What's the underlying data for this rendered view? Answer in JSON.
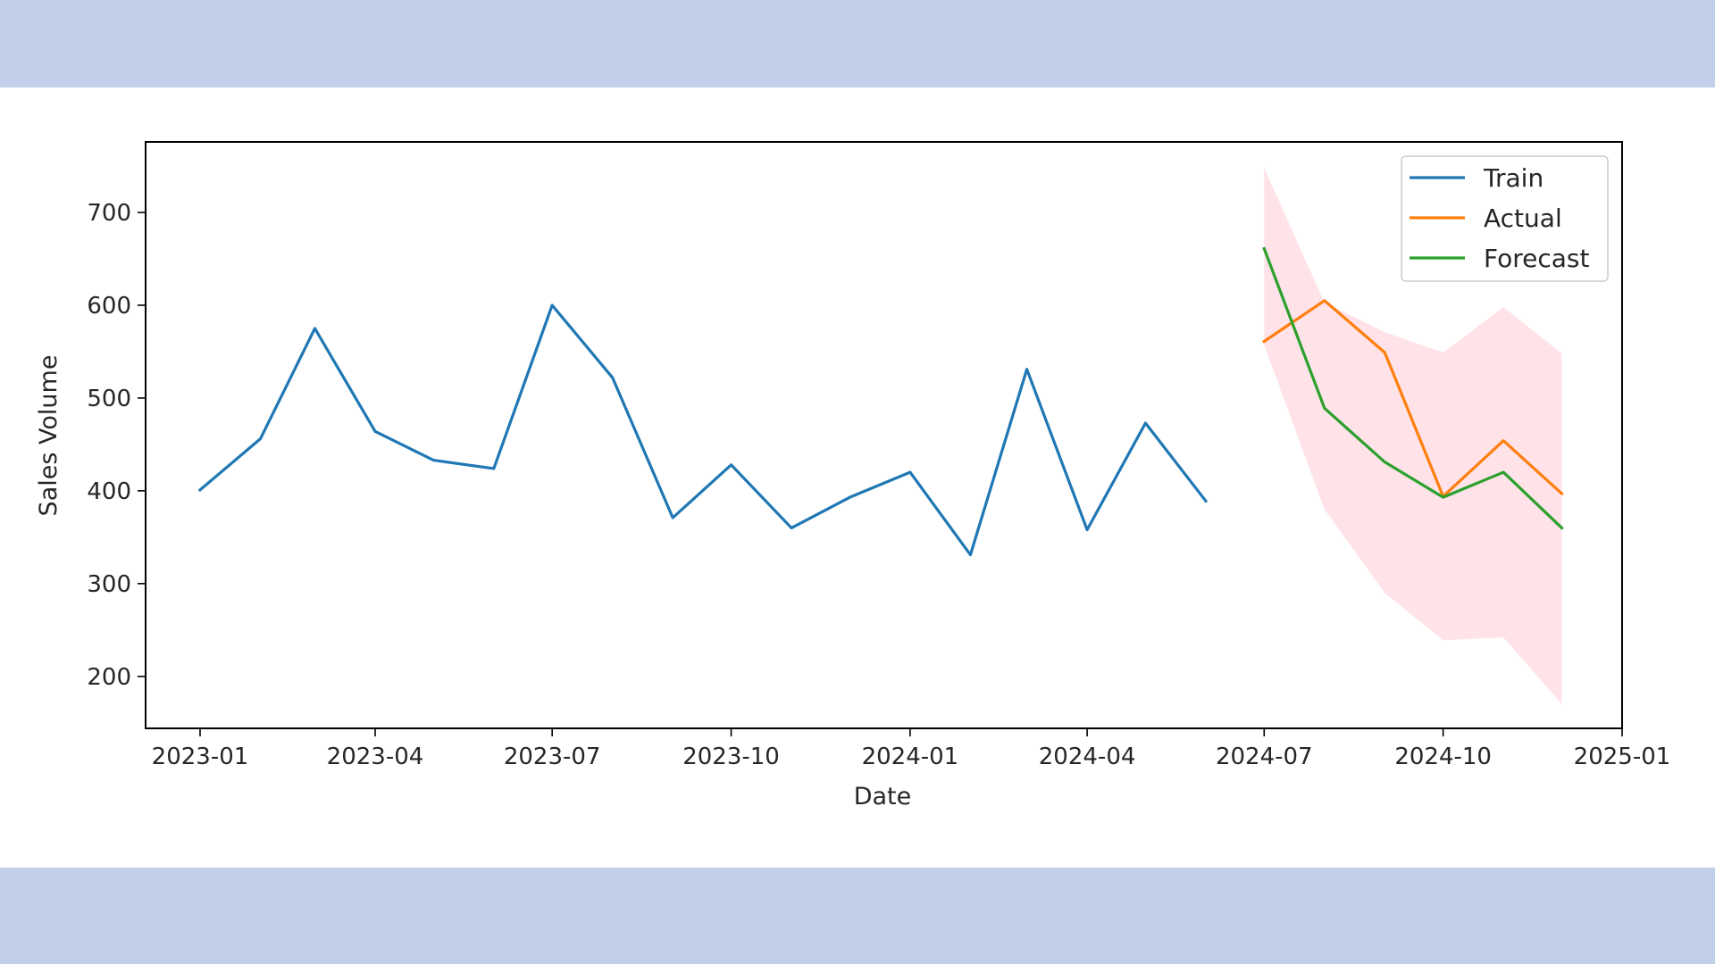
{
  "chart_data": {
    "type": "line",
    "title": "",
    "xlabel": "Date",
    "ylabel": "Sales Volume",
    "xlim": [
      "2022-12-04",
      "2025-01-01"
    ],
    "ylim": [
      144,
      776
    ],
    "x_ticks": [
      "2023-01-01",
      "2023-04-01",
      "2023-07-01",
      "2023-10-01",
      "2024-01-01",
      "2024-04-01",
      "2024-07-01",
      "2024-10-01",
      "2025-01-01"
    ],
    "x_tick_labels": [
      "2023-01",
      "2023-04",
      "2023-07",
      "2023-10",
      "2024-01",
      "2024-04",
      "2024-07",
      "2024-10",
      "2025-01"
    ],
    "y_ticks": [
      200,
      300,
      400,
      500,
      600,
      700
    ],
    "grid": false,
    "legend_position": "top-right",
    "series": [
      {
        "name": "Train",
        "color": "#1f77b4",
        "x": [
          "2023-01-01",
          "2023-02-01",
          "2023-03-01",
          "2023-04-01",
          "2023-05-01",
          "2023-06-01",
          "2023-07-01",
          "2023-08-01",
          "2023-09-01",
          "2023-10-01",
          "2023-11-01",
          "2023-12-01",
          "2024-01-01",
          "2024-02-01",
          "2024-03-01",
          "2024-04-01",
          "2024-05-01",
          "2024-06-01"
        ],
        "y": [
          401,
          456,
          575,
          464,
          433,
          424,
          600,
          522,
          371,
          428,
          360,
          393,
          420,
          331,
          531,
          358,
          473,
          389
        ]
      },
      {
        "name": "Actual",
        "color": "#ff7f0e",
        "x": [
          "2024-07-01",
          "2024-08-01",
          "2024-09-01",
          "2024-10-01",
          "2024-11-01",
          "2024-12-01"
        ],
        "y": [
          561,
          605,
          549,
          394,
          454,
          397
        ]
      },
      {
        "name": "Forecast",
        "color": "#2ca02c",
        "x": [
          "2024-07-01",
          "2024-08-01",
          "2024-09-01",
          "2024-10-01",
          "2024-11-01",
          "2024-12-01"
        ],
        "y": [
          661,
          489,
          431,
          393,
          420,
          360
        ]
      }
    ],
    "confidence_interval": {
      "color": "#ffc0cb",
      "x": [
        "2024-07-01",
        "2024-08-01",
        "2024-09-01",
        "2024-10-01",
        "2024-11-01",
        "2024-12-01"
      ],
      "lower": [
        557,
        380,
        290,
        239,
        242,
        170
      ],
      "upper": [
        748,
        603,
        571,
        549,
        598,
        548
      ]
    }
  }
}
